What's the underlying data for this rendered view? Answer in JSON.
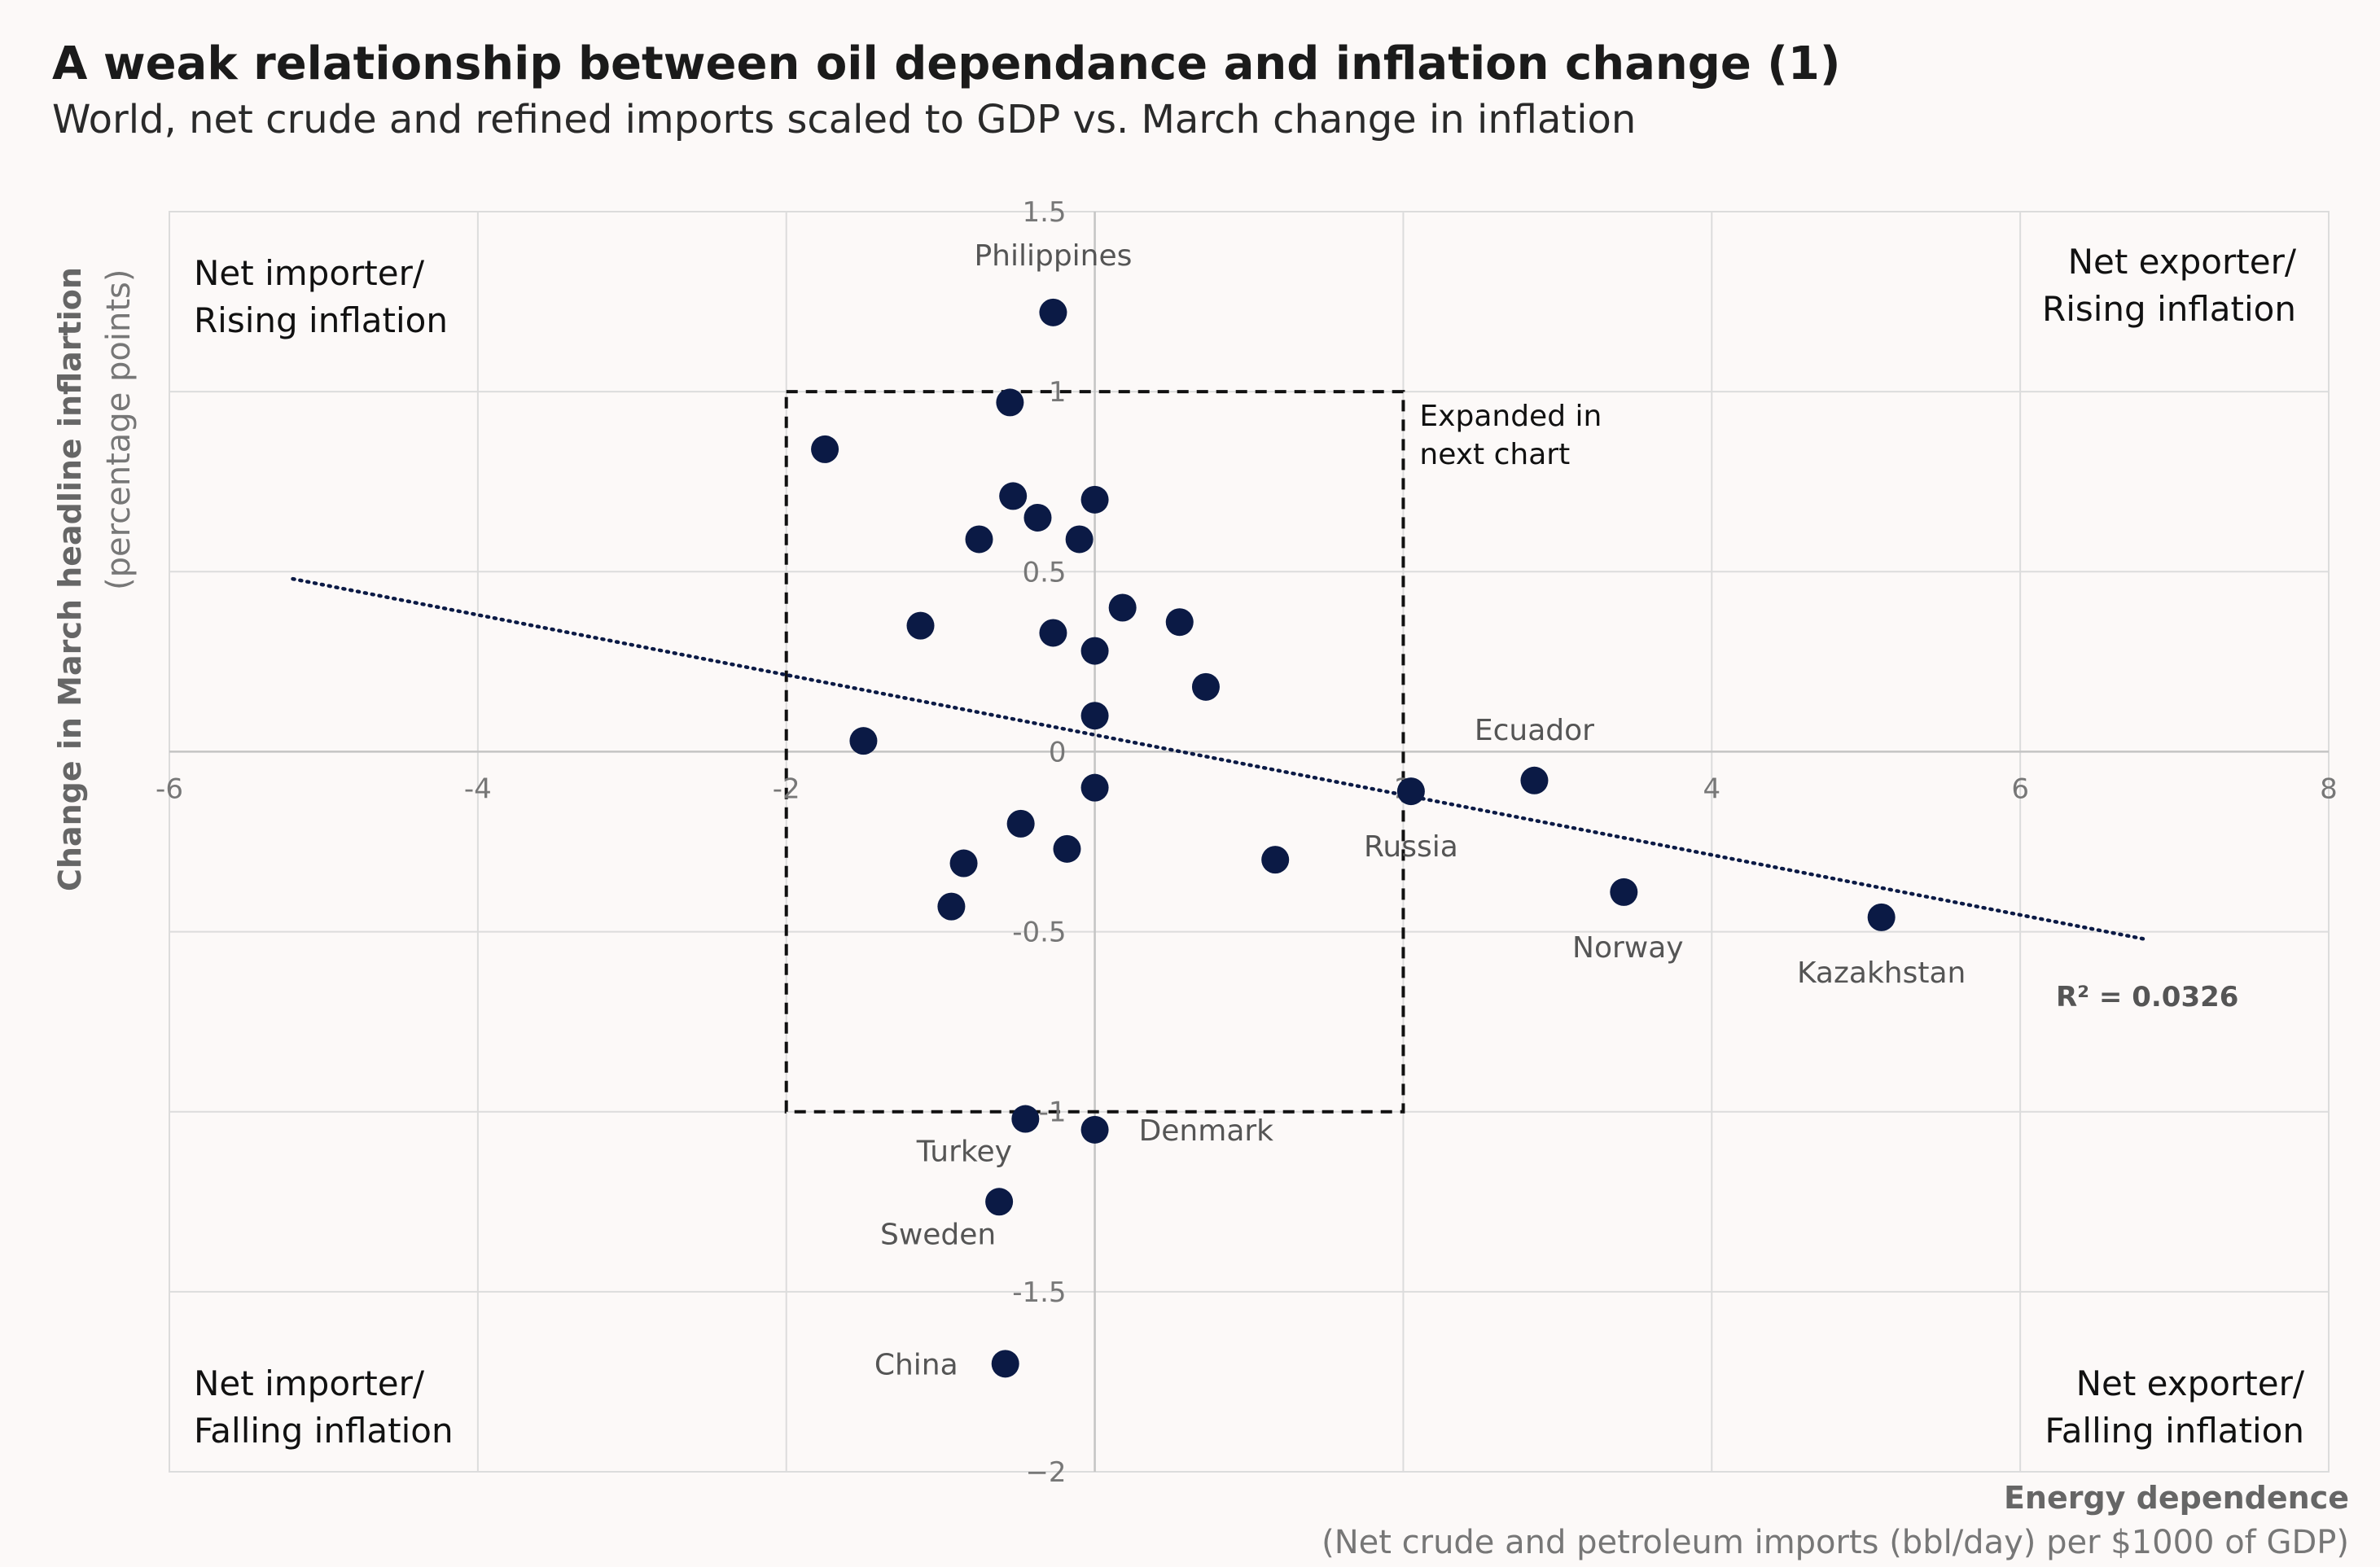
{
  "chart_data": {
    "type": "scatter",
    "title": "A weak relationship between oil dependance and inflation change (1)",
    "subtitle": "World, net crude and refined imports scaled to GDP vs. March change in inflation",
    "xlabel": "Energy dependence",
    "xlabel_sub": "(Net crude and petroleum imports (bbl/day) per $1000 of GDP)",
    "ylabel": "Change in March headline inflartion",
    "ylabel_sub": "(percentage points)",
    "xlim": [
      -6,
      8
    ],
    "ylim": [
      -2,
      1.5
    ],
    "xticks": [
      -6,
      -4,
      -2,
      0,
      2,
      4,
      6,
      8
    ],
    "xtick_labels": [
      "-6",
      "-4",
      "-2",
      "0",
      "2",
      "4",
      "6",
      "8"
    ],
    "yticks": [
      -2,
      -1.5,
      -1,
      -0.5,
      0,
      0.5,
      1,
      1.5
    ],
    "ytick_labels": [
      "−2",
      "-1.5",
      "-1",
      "-0.5",
      "0",
      "0.5",
      "1",
      "1.5"
    ],
    "grid": true,
    "quadrant_labels": [
      {
        "line1": "Net importer/",
        "line2": "Rising inflation",
        "position": "top-left"
      },
      {
        "line1": "Net exporter/",
        "line2": "Rising inflation",
        "position": "top-right"
      },
      {
        "line1": "Net importer/",
        "line2": "Falling inflation",
        "position": "bottom-left"
      },
      {
        "line1": "Net exporter/",
        "line2": "Falling inflation",
        "position": "bottom-right"
      }
    ],
    "expanded_box": {
      "x_range": [
        -2,
        2
      ],
      "y_range": [
        -1,
        1
      ],
      "line1": "Expanded in",
      "line2": "next chart"
    },
    "trendline": {
      "x_start": -5.2,
      "y_start": 0.48,
      "x_end": 6.8,
      "y_end": -0.52,
      "r_squared": "R² = 0.0326"
    },
    "points": [
      {
        "x": -0.27,
        "y": 1.22,
        "label": "Philippines"
      },
      {
        "x": -0.55,
        "y": 0.97,
        "label": ""
      },
      {
        "x": -1.75,
        "y": 0.84,
        "label": ""
      },
      {
        "x": -0.53,
        "y": 0.71,
        "label": ""
      },
      {
        "x": 0.0,
        "y": 0.7,
        "label": ""
      },
      {
        "x": -0.37,
        "y": 0.65,
        "label": ""
      },
      {
        "x": -0.75,
        "y": 0.59,
        "label": ""
      },
      {
        "x": -0.1,
        "y": 0.59,
        "label": ""
      },
      {
        "x": 0.18,
        "y": 0.4,
        "label": ""
      },
      {
        "x": -1.13,
        "y": 0.35,
        "label": ""
      },
      {
        "x": 0.55,
        "y": 0.36,
        "label": ""
      },
      {
        "x": -0.27,
        "y": 0.33,
        "label": ""
      },
      {
        "x": 0.0,
        "y": 0.28,
        "label": ""
      },
      {
        "x": 0.72,
        "y": 0.18,
        "label": ""
      },
      {
        "x": 0.0,
        "y": 0.1,
        "label": ""
      },
      {
        "x": -1.5,
        "y": 0.03,
        "label": ""
      },
      {
        "x": 0.0,
        "y": -0.1,
        "label": ""
      },
      {
        "x": -0.48,
        "y": -0.2,
        "label": ""
      },
      {
        "x": -0.18,
        "y": -0.27,
        "label": ""
      },
      {
        "x": -0.85,
        "y": -0.31,
        "label": ""
      },
      {
        "x": 1.17,
        "y": -0.3,
        "label": ""
      },
      {
        "x": -0.93,
        "y": -0.43,
        "label": ""
      },
      {
        "x": 2.05,
        "y": -0.11,
        "label": "Russia"
      },
      {
        "x": 2.85,
        "y": -0.08,
        "label": "Ecuador"
      },
      {
        "x": 3.43,
        "y": -0.39,
        "label": "Norway"
      },
      {
        "x": 5.1,
        "y": -0.46,
        "label": "Kazakhstan"
      },
      {
        "x": -0.45,
        "y": -1.02,
        "label": "Turkey"
      },
      {
        "x": 0.0,
        "y": -1.05,
        "label": "Denmark"
      },
      {
        "x": -0.62,
        "y": -1.25,
        "label": "Sweden"
      },
      {
        "x": -0.58,
        "y": -1.7,
        "label": "China"
      }
    ]
  }
}
